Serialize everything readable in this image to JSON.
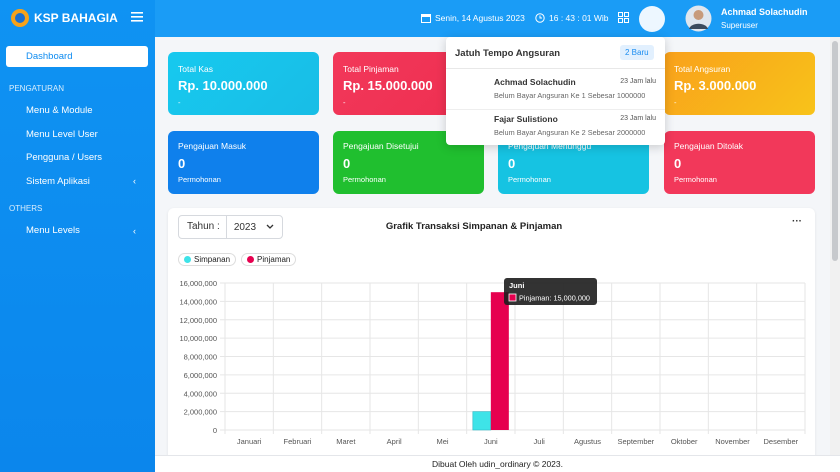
{
  "sidebar": {
    "brand": "KSP BAHAGIA",
    "active": "Dashboard",
    "sections": [
      {
        "title": "PENGATURAN",
        "items": [
          "Menu & Module",
          "Menu Level User",
          "Pengguna / Users",
          "Sistem Aplikasi"
        ]
      },
      {
        "title": "OTHERS",
        "items": [
          "Menu Levels"
        ]
      }
    ]
  },
  "header": {
    "date": "Senin, 14 Agustus 2023",
    "time": "16 : 43 : 01 Wib",
    "user": "Achmad Solachudin",
    "role": "Superuser"
  },
  "summary_cards": [
    {
      "label": "Total Kas",
      "value": "Rp. 10.000.000",
      "note": "-"
    },
    {
      "label": "Total Pinjaman",
      "value": "Rp. 15.000.000",
      "note": "-"
    },
    {
      "label": "Total Angsuran",
      "value": "Rp. 3.000.000",
      "note": "-"
    }
  ],
  "request_cards": [
    {
      "label": "Pengajuan Masuk",
      "value": "0",
      "unit": "Permohonan"
    },
    {
      "label": "Pengajuan Disetujui",
      "value": "0",
      "unit": "Permohonan"
    },
    {
      "label": "Pengajuan Menunggu",
      "value": "0",
      "unit": "Permohonan"
    },
    {
      "label": "Pengajuan Ditolak",
      "value": "0",
      "unit": "Permohonan"
    }
  ],
  "notifications": {
    "title": "Jatuh Tempo Angsuran",
    "badge": "2 Baru",
    "items": [
      {
        "name": "Achmad Solachudin",
        "time": "23 Jam lalu",
        "text": "Belum Bayar Angsuran Ke 1 Sebesar 1000000"
      },
      {
        "name": "Fajar Sulistiono",
        "time": "23 Jam lalu",
        "text": "Belum Bayar Angsuran Ke 2 Sebesar 2000000"
      }
    ]
  },
  "chart_panel": {
    "year_label": "Tahun :",
    "year": "2023"
  },
  "chart_data": {
    "type": "bar",
    "title": "Grafik Transaksi Simpanan & Pinjaman",
    "categories": [
      "Januari",
      "Februari",
      "Maret",
      "April",
      "Mei",
      "Juni",
      "Juli",
      "Agustus",
      "September",
      "Oktober",
      "November",
      "Desember"
    ],
    "series": [
      {
        "name": "Simpanan",
        "color": "#3ee3e8",
        "values": [
          0,
          0,
          0,
          0,
          0,
          2000000,
          0,
          0,
          0,
          0,
          0,
          0
        ]
      },
      {
        "name": "Pinjaman",
        "color": "#e6004f",
        "values": [
          0,
          0,
          0,
          0,
          0,
          15000000,
          0,
          0,
          0,
          0,
          0,
          0
        ]
      }
    ],
    "ylim": [
      0,
      16000000
    ],
    "yticks": [
      0,
      {
        "value": 2000000,
        "label": "2,000,000"
      },
      {
        "value": 4000000,
        "label": "4,000,000"
      },
      {
        "value": 6000000,
        "label": "6,000,000"
      },
      {
        "value": 8000000,
        "label": "8,000,000"
      },
      {
        "value": 10000000,
        "label": "10,000,000"
      },
      {
        "value": 12000000,
        "label": "12,000,000"
      },
      {
        "value": 14000000,
        "label": "14,000,000"
      },
      {
        "value": 16000000,
        "label": "16,000,000"
      }
    ],
    "grid": true,
    "tooltip": {
      "title": "Juni",
      "text": "Pinjaman: 15,000,000"
    }
  },
  "footer": "Dibuat Oleh udin_ordinary © 2023."
}
